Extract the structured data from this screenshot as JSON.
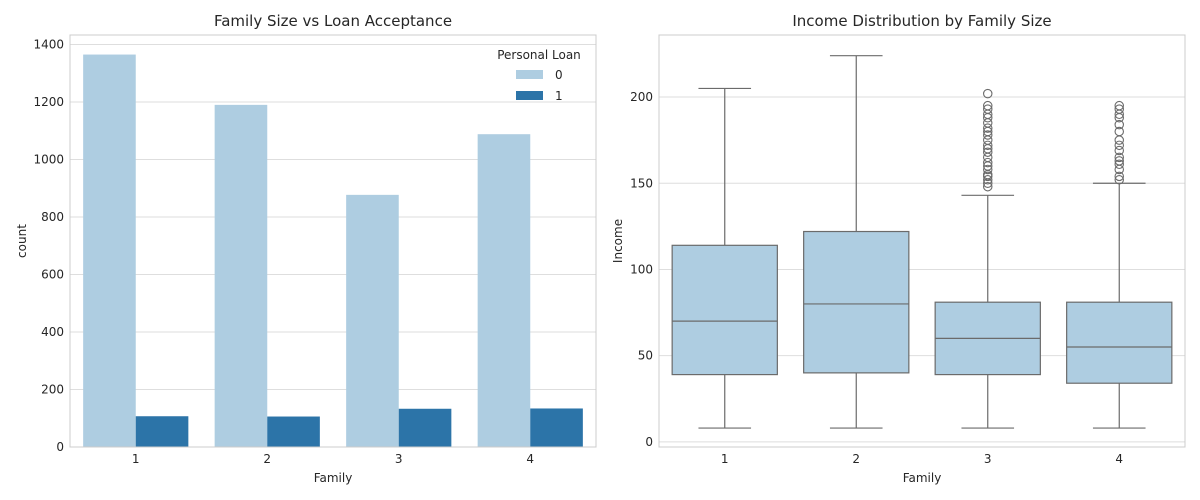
{
  "chart_data": [
    {
      "type": "bar",
      "title": "Family Size vs Loan Acceptance",
      "xlabel": "Family",
      "ylabel": "count",
      "categories": [
        "1",
        "2",
        "3",
        "4"
      ],
      "series": [
        {
          "name": "0",
          "values": [
            1365,
            1190,
            877,
            1088
          ],
          "color": "#aecde1"
        },
        {
          "name": "1",
          "values": [
            107,
            106,
            133,
            134
          ],
          "color": "#2c74a8"
        }
      ],
      "legend": {
        "title": "Personal Loan",
        "position": "top-right"
      },
      "ylim": [
        0,
        1433
      ],
      "yticks": [
        "0",
        "200",
        "400",
        "600",
        "800",
        "1000",
        "1200",
        "1400"
      ],
      "grid": true
    },
    {
      "type": "box",
      "title": "Income Distribution by Family Size",
      "xlabel": "Family",
      "ylabel": "Income",
      "categories": [
        "1",
        "2",
        "3",
        "4"
      ],
      "box_color": "#aecde1",
      "line_color": "#6b6b6b",
      "boxes": [
        {
          "whisker_low": 8,
          "q1": 39,
          "median": 70,
          "q3": 114,
          "whisker_high": 205,
          "outliers": []
        },
        {
          "whisker_low": 8,
          "q1": 40,
          "median": 80,
          "q3": 122,
          "whisker_high": 224,
          "outliers": []
        },
        {
          "whisker_low": 8,
          "q1": 39,
          "median": 60,
          "q3": 81,
          "whisker_high": 143,
          "outliers": [
            148,
            150,
            152,
            154,
            155,
            158,
            160,
            162,
            165,
            168,
            170,
            172,
            175,
            178,
            180,
            182,
            185,
            188,
            190,
            193,
            195,
            202
          ]
        },
        {
          "whisker_low": 8,
          "q1": 34,
          "median": 55,
          "q3": 81,
          "whisker_high": 150,
          "outliers": [
            152,
            154,
            158,
            161,
            163,
            165,
            169,
            172,
            175,
            180,
            184,
            188,
            190,
            193,
            195
          ]
        }
      ],
      "ylim": [
        -3,
        236
      ],
      "yticks": [
        "0",
        "50",
        "100",
        "150",
        "200"
      ],
      "grid": true
    }
  ]
}
